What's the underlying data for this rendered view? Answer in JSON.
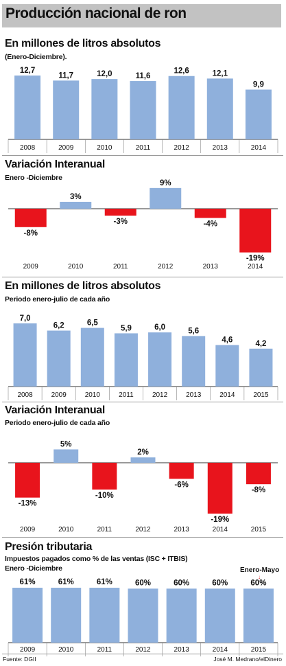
{
  "main_title": "Producción nacional de ron",
  "colors": {
    "bar": "#8fb0dc",
    "negative": "#e8141c",
    "title_bar": "#c2c2c2"
  },
  "sections": [
    {
      "title": "En millones de litros absolutos",
      "subtitle": "(Enero-Diciembre)."
    },
    {
      "title": "Variación Interanual",
      "subtitle": "Enero -Diciembre"
    },
    {
      "title": "En millones de litros absolutos",
      "subtitle": "Periodo enero-julio de cada año"
    },
    {
      "title": "Variación Interanual",
      "subtitle": "Periodo enero-julio de cada año"
    },
    {
      "title": "Presión tributaria",
      "subtitle": "Impuestos pagados como % de las ventas (ISC + ITBIS)",
      "subtitle2": "Enero -Diciembre",
      "note": "Enero-Mayo"
    }
  ],
  "chart_data": [
    {
      "type": "bar",
      "categories": [
        "2008",
        "2009",
        "2010",
        "2011",
        "2012",
        "2013",
        "2014"
      ],
      "values": [
        12.7,
        11.7,
        12.0,
        11.6,
        12.6,
        12.1,
        9.9
      ],
      "labels": [
        "12,7",
        "11,7",
        "12,0",
        "11,6",
        "12,6",
        "12,1",
        "9,9"
      ]
    },
    {
      "type": "bar",
      "categories": [
        "2009",
        "2010",
        "2011",
        "2012",
        "2013",
        "2014"
      ],
      "values": [
        -8,
        3,
        -3,
        9,
        -4,
        -19
      ],
      "labels": [
        "-8%",
        "3%",
        "-3%",
        "9%",
        "-4%",
        "-19%"
      ]
    },
    {
      "type": "bar",
      "categories": [
        "2008",
        "2009",
        "2010",
        "2011",
        "2012",
        "2013",
        "2014",
        "2015"
      ],
      "values": [
        7.0,
        6.2,
        6.5,
        5.9,
        6.0,
        5.6,
        4.6,
        4.2
      ],
      "labels": [
        "7,0",
        "6,2",
        "6,5",
        "5,9",
        "6,0",
        "5,6",
        "4,6",
        "4,2"
      ]
    },
    {
      "type": "bar",
      "categories": [
        "2009",
        "2010",
        "2011",
        "2012",
        "2013",
        "2014",
        "2015"
      ],
      "values": [
        -13,
        5,
        -10,
        2,
        -6,
        -19,
        -8
      ],
      "labels": [
        "-13%",
        "5%",
        "-10%",
        "2%",
        "-6%",
        "-19%",
        "-8%"
      ]
    },
    {
      "type": "bar",
      "categories": [
        "2009",
        "2010",
        "2011",
        "2012",
        "2013",
        "2014",
        "2015"
      ],
      "values": [
        61,
        61,
        61,
        60,
        60,
        60,
        60
      ],
      "labels": [
        "61%",
        "61%",
        "61%",
        "60%",
        "60%",
        "60%",
        "60%"
      ]
    }
  ],
  "footer": {
    "source": "Fuente: DGII",
    "credit": "José M. Medrano/elDinero"
  }
}
